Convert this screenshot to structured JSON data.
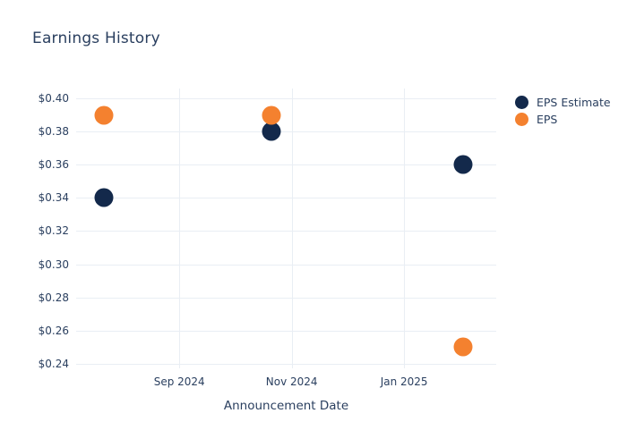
{
  "title": "Earnings History",
  "colors": {
    "eps_estimate": "#13294b",
    "eps": "#f4812f",
    "text": "#2a3f5f",
    "grid": "#e9eef4",
    "background": "#ffffff"
  },
  "legend": {
    "items": [
      {
        "label": "EPS Estimate"
      },
      {
        "label": "EPS"
      }
    ]
  },
  "chart_data": {
    "type": "scatter",
    "title": "Earnings History",
    "xlabel": "Announcement Date",
    "ylabel": "",
    "grid": true,
    "legend_position": "right",
    "x_range": [
      "2024-07-07",
      "2025-02-20"
    ],
    "y_range": [
      0.2373,
      0.4059
    ],
    "x_ticks": [
      {
        "label": "Sep 2024",
        "date": "2024-09-01"
      },
      {
        "label": "Nov 2024",
        "date": "2024-11-01"
      },
      {
        "label": "Jan 2025",
        "date": "2025-01-01"
      }
    ],
    "y_ticks": [
      {
        "label": "$0.24",
        "value": 0.24
      },
      {
        "label": "$0.26",
        "value": 0.26
      },
      {
        "label": "$0.28",
        "value": 0.28
      },
      {
        "label": "$0.30",
        "value": 0.3
      },
      {
        "label": "$0.32",
        "value": 0.32
      },
      {
        "label": "$0.34",
        "value": 0.34
      },
      {
        "label": "$0.36",
        "value": 0.36
      },
      {
        "label": "$0.38",
        "value": 0.38
      },
      {
        "label": "$0.40",
        "value": 0.4
      }
    ],
    "series": [
      {
        "name": "EPS Estimate",
        "color": "#13294b",
        "points": [
          {
            "date": "2024-07-22",
            "value": 0.34
          },
          {
            "date": "2024-10-21",
            "value": 0.38
          },
          {
            "date": "2025-02-02",
            "value": 0.36
          }
        ]
      },
      {
        "name": "EPS",
        "color": "#f4812f",
        "points": [
          {
            "date": "2024-07-22",
            "value": 0.39
          },
          {
            "date": "2024-10-21",
            "value": 0.39
          },
          {
            "date": "2025-02-02",
            "value": 0.25
          }
        ]
      }
    ]
  }
}
